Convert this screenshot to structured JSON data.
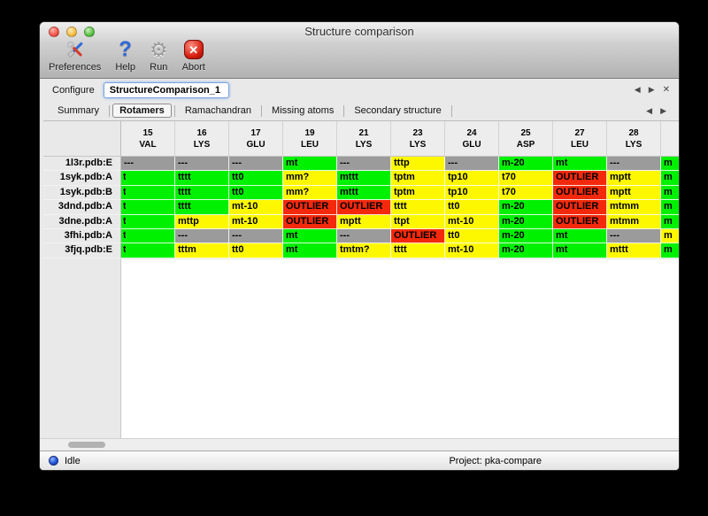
{
  "window": {
    "title": "Structure comparison"
  },
  "toolbar": {
    "items": [
      {
        "label": "Preferences",
        "icon": "tools-icon"
      },
      {
        "label": "Help",
        "icon": "question-icon",
        "glyph": "?"
      },
      {
        "label": "Run",
        "icon": "gear-icon",
        "glyph": "⚙"
      },
      {
        "label": "Abort",
        "icon": "stop-icon",
        "glyph": "✕"
      }
    ]
  },
  "configure": {
    "label": "Configure",
    "value": "StructureComparison_1",
    "nav": {
      "prev": "◀",
      "next": "▶",
      "close": "✕"
    }
  },
  "tabs": [
    {
      "label": "Summary",
      "active": false
    },
    {
      "label": "Rotamers",
      "active": true
    },
    {
      "label": "Ramachandran",
      "active": false
    },
    {
      "label": "Missing atoms",
      "active": false
    },
    {
      "label": "Secondary structure",
      "active": false
    }
  ],
  "tab_nav": {
    "prev": "◀",
    "next": "▶"
  },
  "colors": {
    "green": "#00f100",
    "yellow": "#fdf800",
    "red": "#f4290b",
    "gray": "#9b9b9b"
  },
  "table": {
    "columns": [
      {
        "num": "15",
        "res": "VAL"
      },
      {
        "num": "16",
        "res": "LYS"
      },
      {
        "num": "17",
        "res": "GLU"
      },
      {
        "num": "19",
        "res": "LEU"
      },
      {
        "num": "21",
        "res": "LYS"
      },
      {
        "num": "23",
        "res": "LYS"
      },
      {
        "num": "24",
        "res": "GLU"
      },
      {
        "num": "25",
        "res": "ASP"
      },
      {
        "num": "27",
        "res": "LEU"
      },
      {
        "num": "28",
        "res": "LYS"
      }
    ],
    "rows": [
      {
        "label": "1l3r.pdb:E",
        "cells": [
          {
            "t": "---",
            "c": "gray"
          },
          {
            "t": "---",
            "c": "gray"
          },
          {
            "t": "---",
            "c": "gray"
          },
          {
            "t": "mt",
            "c": "green"
          },
          {
            "t": "---",
            "c": "gray"
          },
          {
            "t": "tttp",
            "c": "yellow"
          },
          {
            "t": "---",
            "c": "gray"
          },
          {
            "t": "m-20",
            "c": "green"
          },
          {
            "t": "mt",
            "c": "green"
          },
          {
            "t": "---",
            "c": "gray"
          }
        ],
        "partial": {
          "t": "m",
          "c": "green"
        }
      },
      {
        "label": "1syk.pdb:A",
        "cells": [
          {
            "t": "t",
            "c": "green",
            "clip": true
          },
          {
            "t": "tttt",
            "c": "green"
          },
          {
            "t": "tt0",
            "c": "green"
          },
          {
            "t": "mm?",
            "c": "yellow"
          },
          {
            "t": "mttt",
            "c": "green"
          },
          {
            "t": "tptm",
            "c": "yellow"
          },
          {
            "t": "tp10",
            "c": "yellow"
          },
          {
            "t": "t70",
            "c": "yellow"
          },
          {
            "t": "OUTLIER",
            "c": "red"
          },
          {
            "t": "mptt",
            "c": "yellow"
          }
        ],
        "partial": {
          "t": "m",
          "c": "green"
        }
      },
      {
        "label": "1syk.pdb:B",
        "cells": [
          {
            "t": "t",
            "c": "green",
            "clip": true
          },
          {
            "t": "tttt",
            "c": "green"
          },
          {
            "t": "tt0",
            "c": "green"
          },
          {
            "t": "mm?",
            "c": "yellow"
          },
          {
            "t": "mttt",
            "c": "green"
          },
          {
            "t": "tptm",
            "c": "yellow"
          },
          {
            "t": "tp10",
            "c": "yellow"
          },
          {
            "t": "t70",
            "c": "yellow"
          },
          {
            "t": "OUTLIER",
            "c": "red"
          },
          {
            "t": "mptt",
            "c": "yellow"
          }
        ],
        "partial": {
          "t": "m",
          "c": "green"
        }
      },
      {
        "label": "3dnd.pdb:A",
        "cells": [
          {
            "t": "t",
            "c": "green",
            "clip": true
          },
          {
            "t": "tttt",
            "c": "green"
          },
          {
            "t": "mt-10",
            "c": "yellow"
          },
          {
            "t": "OUTLIER",
            "c": "red"
          },
          {
            "t": "OUTLIER",
            "c": "red"
          },
          {
            "t": "tttt",
            "c": "yellow"
          },
          {
            "t": "tt0",
            "c": "yellow"
          },
          {
            "t": "m-20",
            "c": "green"
          },
          {
            "t": "OUTLIER",
            "c": "red"
          },
          {
            "t": "mtmm",
            "c": "yellow"
          }
        ],
        "partial": {
          "t": "m",
          "c": "green"
        }
      },
      {
        "label": "3dne.pdb:A",
        "cells": [
          {
            "t": "t",
            "c": "green",
            "clip": true
          },
          {
            "t": "mttp",
            "c": "yellow"
          },
          {
            "t": "mt-10",
            "c": "yellow"
          },
          {
            "t": "OUTLIER",
            "c": "red"
          },
          {
            "t": "mptt",
            "c": "yellow"
          },
          {
            "t": "ttpt",
            "c": "yellow"
          },
          {
            "t": "mt-10",
            "c": "yellow"
          },
          {
            "t": "m-20",
            "c": "green"
          },
          {
            "t": "OUTLIER",
            "c": "red"
          },
          {
            "t": "mtmm",
            "c": "yellow"
          }
        ],
        "partial": {
          "t": "m",
          "c": "green"
        }
      },
      {
        "label": "3fhi.pdb:A",
        "cells": [
          {
            "t": "t",
            "c": "green",
            "clip": true
          },
          {
            "t": "---",
            "c": "gray"
          },
          {
            "t": "---",
            "c": "gray"
          },
          {
            "t": "mt",
            "c": "green"
          },
          {
            "t": "---",
            "c": "gray"
          },
          {
            "t": "OUTLIER",
            "c": "red"
          },
          {
            "t": "tt0",
            "c": "yellow"
          },
          {
            "t": "m-20",
            "c": "green"
          },
          {
            "t": "mt",
            "c": "green"
          },
          {
            "t": "---",
            "c": "gray"
          }
        ],
        "partial": {
          "t": "m",
          "c": "yellow"
        }
      },
      {
        "label": "3fjq.pdb:E",
        "cells": [
          {
            "t": "t",
            "c": "green",
            "clip": true
          },
          {
            "t": "tttm",
            "c": "yellow"
          },
          {
            "t": "tt0",
            "c": "yellow"
          },
          {
            "t": "mt",
            "c": "green"
          },
          {
            "t": "tmtm?",
            "c": "yellow"
          },
          {
            "t": "tttt",
            "c": "yellow"
          },
          {
            "t": "mt-10",
            "c": "yellow"
          },
          {
            "t": "m-20",
            "c": "green"
          },
          {
            "t": "mt",
            "c": "green"
          },
          {
            "t": "mttt",
            "c": "yellow"
          }
        ],
        "partial": {
          "t": "m",
          "c": "green"
        }
      }
    ]
  },
  "statusbar": {
    "status": "Idle",
    "project": "Project: pka-compare"
  }
}
